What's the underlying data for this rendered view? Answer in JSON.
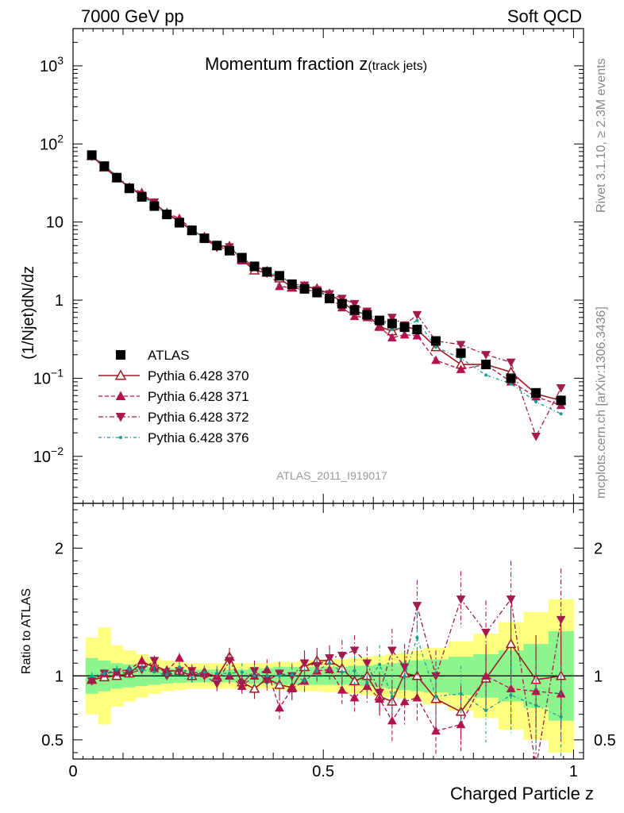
{
  "header": {
    "left": "7000 GeV pp",
    "right": "Soft QCD"
  },
  "title": {
    "main": "Momentum fraction ",
    "var": "z",
    "sub": "(track jets)"
  },
  "watermark": "ATLAS_2011_I919017",
  "side_text": {
    "rivet": "Rivet 3.1.10, ≥ 2.3M events",
    "mcplots": "mcplots.cern.ch [arXiv:1306.3436]"
  },
  "colors": {
    "atlas": "#000000",
    "p370": "#9b1c24",
    "p371": "#b3124f",
    "p372": "#a31a4d",
    "p376": "#119e8f",
    "band_inner": "#8df58d",
    "band_outer": "#ffff80"
  },
  "chart_data": [
    {
      "type": "line",
      "scale": "log",
      "ylabel": "(1/Njet)dN/dz",
      "ylim": [
        0.0025,
        3000
      ],
      "xlim": [
        0,
        1.02
      ],
      "yticks": [
        {
          "value": 0.01,
          "base": "10",
          "exp": "−2"
        },
        {
          "value": 0.1,
          "base": "10",
          "exp": "−1"
        },
        {
          "value": 1,
          "base": "1",
          "exp": ""
        },
        {
          "value": 10,
          "base": "10",
          "exp": ""
        },
        {
          "value": 100,
          "base": "10",
          "exp": "2"
        },
        {
          "value": 1000,
          "base": "10",
          "exp": "3"
        }
      ],
      "x": [
        0.0375,
        0.0625,
        0.0875,
        0.1125,
        0.1375,
        0.1625,
        0.1875,
        0.2125,
        0.2375,
        0.2625,
        0.2875,
        0.3125,
        0.3375,
        0.3625,
        0.3875,
        0.4125,
        0.4375,
        0.4625,
        0.4875,
        0.5125,
        0.5375,
        0.5625,
        0.5875,
        0.6125,
        0.6375,
        0.6625,
        0.6875,
        0.725,
        0.775,
        0.825,
        0.875,
        0.925,
        0.975
      ],
      "legend": {
        "placement": "left",
        "entries": [
          "ATLAS",
          "Pythia 6.428 370",
          "Pythia 6.428 371",
          "Pythia 6.428 372",
          "Pythia 6.428 376"
        ]
      },
      "series": [
        {
          "name": "ATLAS",
          "marker": "square",
          "values": [
            72,
            52,
            37,
            27,
            21,
            16,
            12.5,
            9.8,
            7.8,
            6.2,
            5,
            4.3,
            3.5,
            2.7,
            2.3,
            2.05,
            1.6,
            1.4,
            1.25,
            1.05,
            0.9,
            0.75,
            0.65,
            0.55,
            0.5,
            0.45,
            0.42,
            0.3,
            0.21,
            0.15,
            0.1,
            0.065,
            0.052
          ]
        },
        {
          "name": "Pythia 6.428 370",
          "marker": "triangle-up-open",
          "values": [
            70,
            50,
            37,
            27.5,
            23,
            17.3,
            13,
            10.2,
            7.8,
            6.4,
            4.95,
            4.9,
            3.3,
            2.4,
            2.25,
            1.9,
            1.45,
            1.5,
            1.4,
            1.2,
            0.95,
            0.72,
            0.65,
            0.46,
            0.4,
            0.46,
            0.42,
            0.25,
            0.15,
            0.15,
            0.12,
            0.063,
            0.052
          ]
        },
        {
          "name": "Pythia 6.428 371",
          "marker": "triangle-up",
          "values": [
            70,
            53,
            38,
            28,
            24,
            17,
            13,
            11.2,
            8,
            6.3,
            5,
            4.3,
            3.2,
            2.7,
            2.4,
            1.5,
            1.45,
            1.35,
            1.3,
            1.1,
            0.8,
            0.62,
            0.6,
            0.45,
            0.33,
            0.36,
            0.35,
            0.17,
            0.13,
            0.15,
            0.09,
            0.058,
            0.045
          ]
        },
        {
          "name": "Pythia 6.428 372",
          "marker": "triangle-down",
          "values": [
            69,
            53,
            38,
            27.5,
            22,
            18,
            12.5,
            10.2,
            8.1,
            6.2,
            4.7,
            4.8,
            3.3,
            2.8,
            2.2,
            2.1,
            1.6,
            1.55,
            1.35,
            1.2,
            1.05,
            0.9,
            0.72,
            0.48,
            0.6,
            0.48,
            0.65,
            0.3,
            0.27,
            0.2,
            0.16,
            0.018,
            0.075
          ]
        },
        {
          "name": "Pythia 6.428 376",
          "marker": "dot",
          "values": [
            72,
            53,
            39,
            28.5,
            22,
            16.5,
            12.6,
            10.5,
            7.7,
            6.4,
            5.1,
            4.4,
            3.6,
            2.7,
            2.3,
            2.05,
            1.62,
            1.35,
            1.3,
            1.15,
            0.93,
            0.78,
            0.62,
            0.6,
            0.42,
            0.45,
            0.55,
            0.25,
            0.18,
            0.11,
            0.085,
            0.05,
            0.035
          ]
        }
      ]
    },
    {
      "type": "line",
      "scale": "linear",
      "ylabel": "Ratio to ATLAS",
      "xlabel": "Charged Particle z",
      "xlim": [
        0,
        1.02
      ],
      "ylim": [
        0.35,
        2.35
      ],
      "yticks": [
        {
          "value": 0.5,
          "label": "0.5"
        },
        {
          "value": 1,
          "label": "1"
        },
        {
          "value": 2,
          "label": "2"
        }
      ],
      "xticks": [
        {
          "value": 0,
          "label": "0"
        },
        {
          "value": 0.5,
          "label": "0.5"
        },
        {
          "value": 1,
          "label": "1"
        }
      ],
      "band_edges": [
        0.025,
        0.05,
        0.075,
        0.1,
        0.125,
        0.15,
        0.175,
        0.2,
        0.225,
        0.25,
        0.275,
        0.3,
        0.325,
        0.35,
        0.375,
        0.4,
        0.425,
        0.45,
        0.475,
        0.5,
        0.525,
        0.55,
        0.575,
        0.6,
        0.625,
        0.65,
        0.675,
        0.7,
        0.75,
        0.8,
        0.85,
        0.9,
        0.95,
        1.0
      ],
      "band_inner_half": [
        0.14,
        0.12,
        0.1,
        0.09,
        0.08,
        0.07,
        0.06,
        0.055,
        0.05,
        0.05,
        0.05,
        0.05,
        0.05,
        0.06,
        0.06,
        0.07,
        0.07,
        0.07,
        0.07,
        0.07,
        0.07,
        0.08,
        0.08,
        0.09,
        0.1,
        0.11,
        0.12,
        0.13,
        0.15,
        0.17,
        0.2,
        0.25,
        0.35
      ],
      "band_outer_half": [
        0.3,
        0.38,
        0.24,
        0.2,
        0.17,
        0.14,
        0.12,
        0.11,
        0.1,
        0.1,
        0.1,
        0.1,
        0.1,
        0.1,
        0.1,
        0.11,
        0.11,
        0.12,
        0.12,
        0.13,
        0.13,
        0.14,
        0.15,
        0.16,
        0.17,
        0.18,
        0.2,
        0.22,
        0.27,
        0.33,
        0.42,
        0.5,
        0.6
      ],
      "series": [
        {
          "name": "Pythia 6.428 370",
          "marker": "triangle-up-open",
          "values": [
            0.97,
            0.99,
            1.0,
            1.02,
            1.1,
            1.08,
            1.04,
            1.04,
            1.0,
            1.03,
            0.99,
            1.15,
            0.95,
            0.9,
            0.98,
            0.93,
            0.91,
            1.07,
            1.12,
            1.12,
            1.06,
            0.96,
            1.0,
            0.84,
            0.8,
            1.02,
            1.0,
            0.82,
            0.72,
            0.98,
            1.25,
            0.97,
            1.0
          ],
          "err": [
            0.03,
            0.03,
            0.03,
            0.03,
            0.04,
            0.04,
            0.04,
            0.04,
            0.05,
            0.05,
            0.06,
            0.07,
            0.07,
            0.08,
            0.08,
            0.09,
            0.09,
            0.1,
            0.1,
            0.1,
            0.12,
            0.12,
            0.13,
            0.15,
            0.17,
            0.18,
            0.2,
            0.2,
            0.22,
            0.25,
            0.3,
            0.35,
            0.4
          ]
        },
        {
          "name": "Pythia 6.428 371",
          "marker": "triangle-up",
          "values": [
            0.97,
            1.02,
            1.03,
            1.05,
            1.12,
            1.06,
            1.04,
            1.14,
            1.03,
            1.02,
            1.0,
            1.0,
            0.92,
            1.0,
            1.05,
            0.75,
            0.9,
            0.96,
            1.04,
            1.05,
            0.89,
            0.83,
            0.92,
            0.82,
            0.65,
            0.8,
            0.83,
            0.57,
            0.62,
            1.0,
            0.9,
            0.88,
            0.86
          ],
          "err": [
            0.03,
            0.03,
            0.03,
            0.03,
            0.04,
            0.04,
            0.04,
            0.04,
            0.05,
            0.05,
            0.06,
            0.07,
            0.07,
            0.08,
            0.08,
            0.09,
            0.09,
            0.1,
            0.1,
            0.1,
            0.12,
            0.12,
            0.13,
            0.15,
            0.17,
            0.18,
            0.2,
            0.2,
            0.22,
            0.25,
            0.3,
            0.35,
            0.4
          ]
        },
        {
          "name": "Pythia 6.428 372",
          "marker": "triangle-down",
          "values": [
            0.96,
            1.02,
            1.03,
            1.02,
            1.05,
            1.12,
            1.0,
            1.04,
            1.04,
            1.0,
            0.94,
            1.12,
            0.94,
            1.04,
            0.96,
            1.02,
            1.0,
            1.1,
            1.08,
            1.14,
            1.16,
            1.2,
            1.1,
            0.87,
            1.2,
            1.07,
            1.55,
            1.0,
            1.6,
            1.34,
            1.6,
            0.28,
            1.44
          ],
          "err": [
            0.03,
            0.03,
            0.03,
            0.03,
            0.04,
            0.04,
            0.04,
            0.04,
            0.05,
            0.05,
            0.06,
            0.07,
            0.07,
            0.08,
            0.08,
            0.09,
            0.09,
            0.1,
            0.1,
            0.1,
            0.12,
            0.12,
            0.13,
            0.15,
            0.17,
            0.18,
            0.2,
            0.2,
            0.22,
            0.25,
            0.3,
            0.35,
            0.4
          ]
        },
        {
          "name": "Pythia 6.428 376",
          "marker": "dot",
          "values": [
            1.0,
            1.02,
            1.05,
            1.05,
            1.05,
            1.03,
            1.01,
            1.07,
            0.99,
            1.03,
            1.02,
            1.02,
            1.03,
            1.0,
            1.0,
            1.0,
            1.01,
            0.96,
            1.04,
            1.1,
            1.03,
            1.04,
            0.95,
            1.09,
            0.84,
            1.0,
            1.3,
            0.84,
            0.86,
            0.73,
            0.85,
            0.77,
            0.68
          ],
          "err": [
            0.03,
            0.03,
            0.03,
            0.03,
            0.04,
            0.04,
            0.04,
            0.04,
            0.05,
            0.05,
            0.06,
            0.07,
            0.07,
            0.08,
            0.08,
            0.09,
            0.09,
            0.1,
            0.1,
            0.1,
            0.12,
            0.12,
            0.13,
            0.15,
            0.17,
            0.18,
            0.2,
            0.2,
            0.22,
            0.25,
            0.3,
            0.35,
            0.4
          ]
        }
      ]
    }
  ]
}
